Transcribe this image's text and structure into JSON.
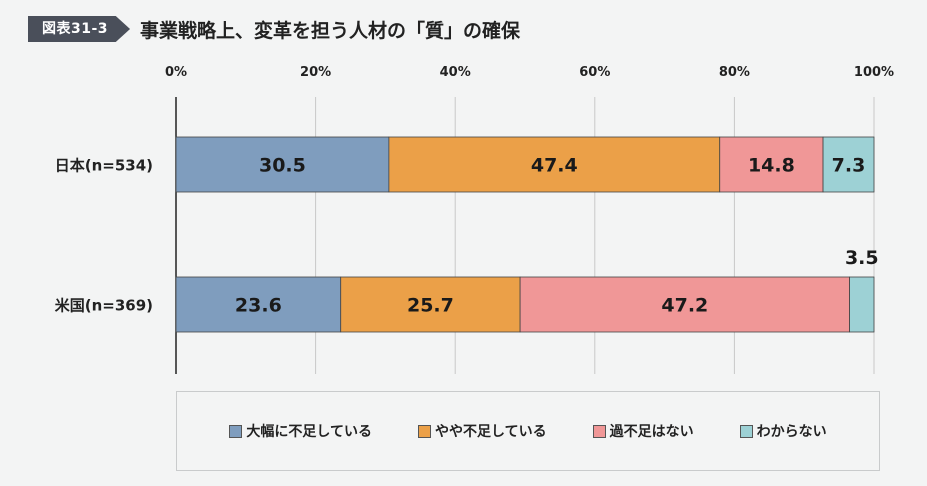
{
  "header": {
    "figure_number": "図表31-3",
    "title": "事業戦略上、変革を担う人材の「質」の確保"
  },
  "chart_data": {
    "type": "bar",
    "orientation": "horizontal-stacked-100",
    "x_tick_labels": [
      "0%",
      "20%",
      "40%",
      "60%",
      "80%",
      "100%"
    ],
    "xlim": [
      0,
      100
    ],
    "grid": true,
    "legend_position": "bottom",
    "categories": [
      "日本(n=534)",
      "米国(n=369)"
    ],
    "series": [
      {
        "name": "大幅に不足している",
        "color": "#7f9dbe",
        "values": [
          30.5,
          23.6
        ]
      },
      {
        "name": "やや不足している",
        "color": "#eba048",
        "values": [
          47.4,
          25.7
        ]
      },
      {
        "name": "過不足はない",
        "color": "#f09797",
        "values": [
          14.8,
          47.2
        ]
      },
      {
        "name": "わからない",
        "color": "#9dd1d5",
        "values": [
          7.3,
          3.5
        ]
      }
    ]
  }
}
